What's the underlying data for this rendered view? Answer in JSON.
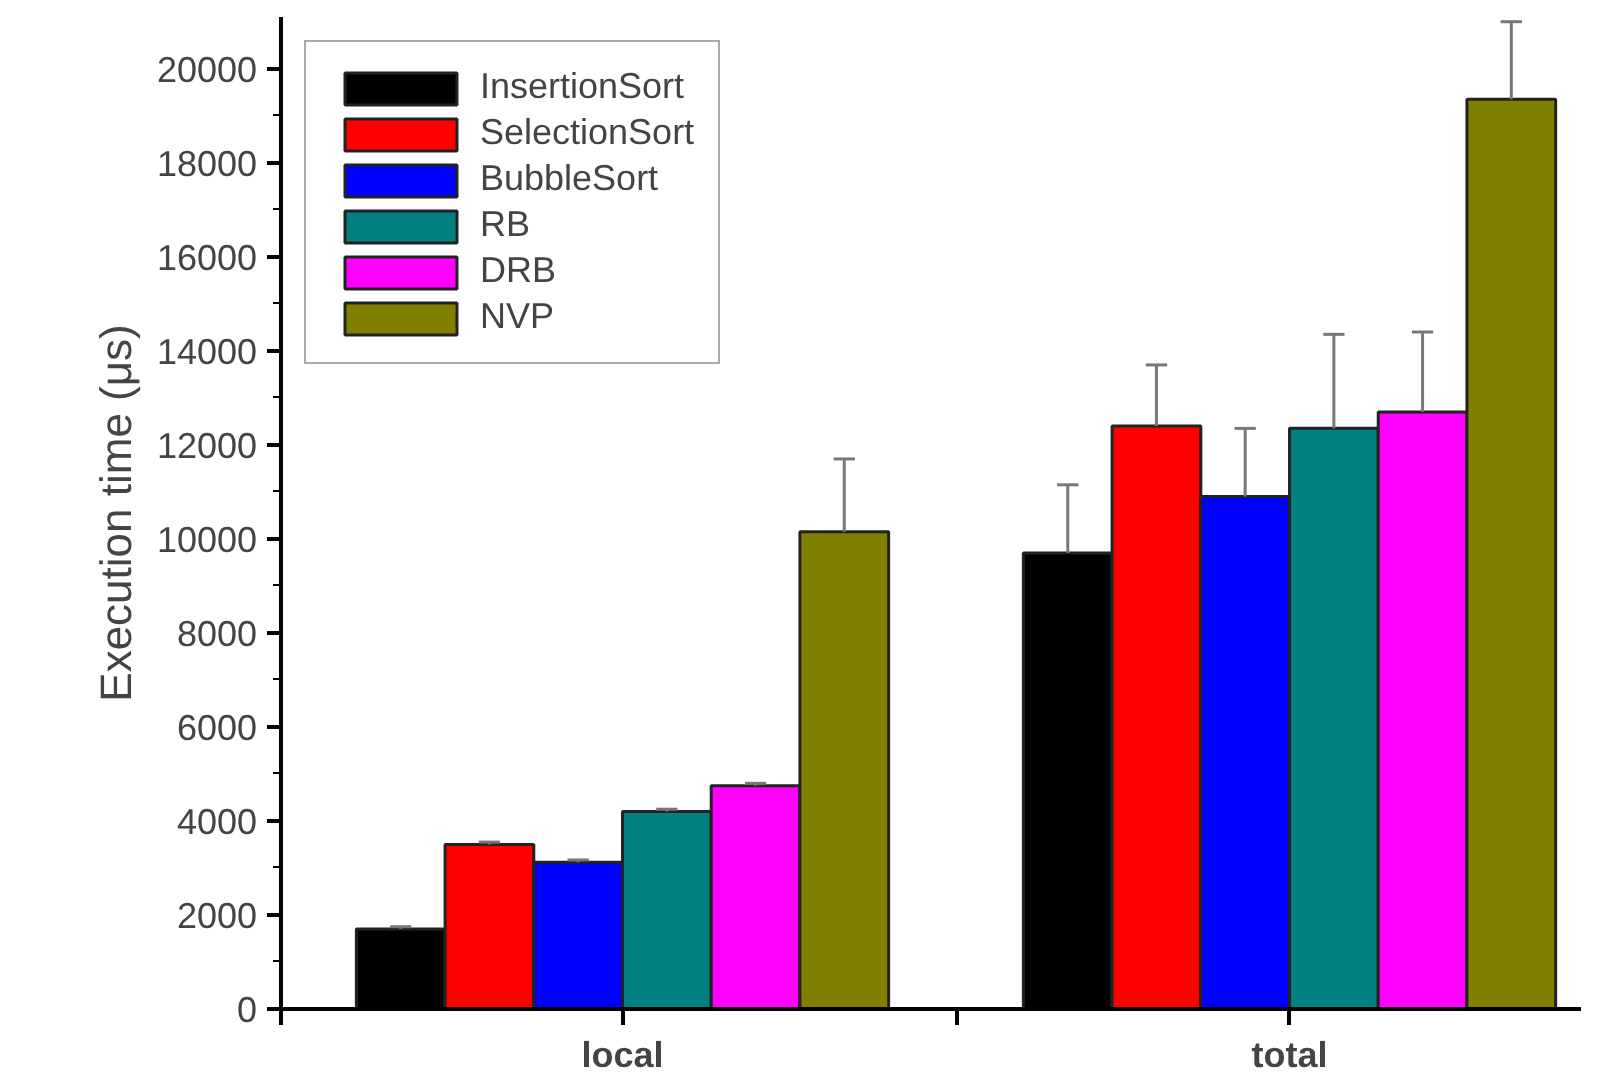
{
  "chart_data": {
    "type": "bar",
    "ylabel": "Execution time (μs)",
    "categories": [
      "local",
      "total"
    ],
    "series": [
      {
        "name": "InsertionSort",
        "color": "#000000",
        "values": [
          1700,
          9700
        ],
        "errors": [
          50,
          1450
        ]
      },
      {
        "name": "SelectionSort",
        "color": "#ff0000",
        "values": [
          3500,
          12400
        ],
        "errors": [
          50,
          1300
        ]
      },
      {
        "name": "BubbleSort",
        "color": "#0000ff",
        "values": [
          3120,
          10900
        ],
        "errors": [
          50,
          1450
        ]
      },
      {
        "name": "RB",
        "color": "#008080",
        "values": [
          4200,
          12350
        ],
        "errors": [
          50,
          2000
        ]
      },
      {
        "name": "DRB",
        "color": "#ff00ff",
        "values": [
          4750,
          12700
        ],
        "errors": [
          50,
          1700
        ]
      },
      {
        "name": "NVP",
        "color": "#808000",
        "values": [
          10150,
          19350
        ],
        "errors": [
          1550,
          1650
        ]
      }
    ],
    "ylim": [
      0,
      21100
    ],
    "yticks": [
      0,
      {
        "value": 1000,
        "label": null
      },
      2000,
      {
        "value": 3000,
        "label": null
      },
      4000,
      {
        "value": 5000,
        "label": null
      },
      6000,
      {
        "value": 7000,
        "label": null
      },
      8000,
      {
        "value": 9000,
        "label": null
      },
      10000,
      {
        "value": 11000,
        "label": null
      },
      12000,
      {
        "value": 13000,
        "label": null
      },
      14000,
      {
        "value": 15000,
        "label": null
      },
      16000,
      {
        "value": 17000,
        "label": null
      },
      18000,
      {
        "value": 19000,
        "label": null
      },
      20000
    ],
    "grid": false,
    "legend": "top left"
  }
}
